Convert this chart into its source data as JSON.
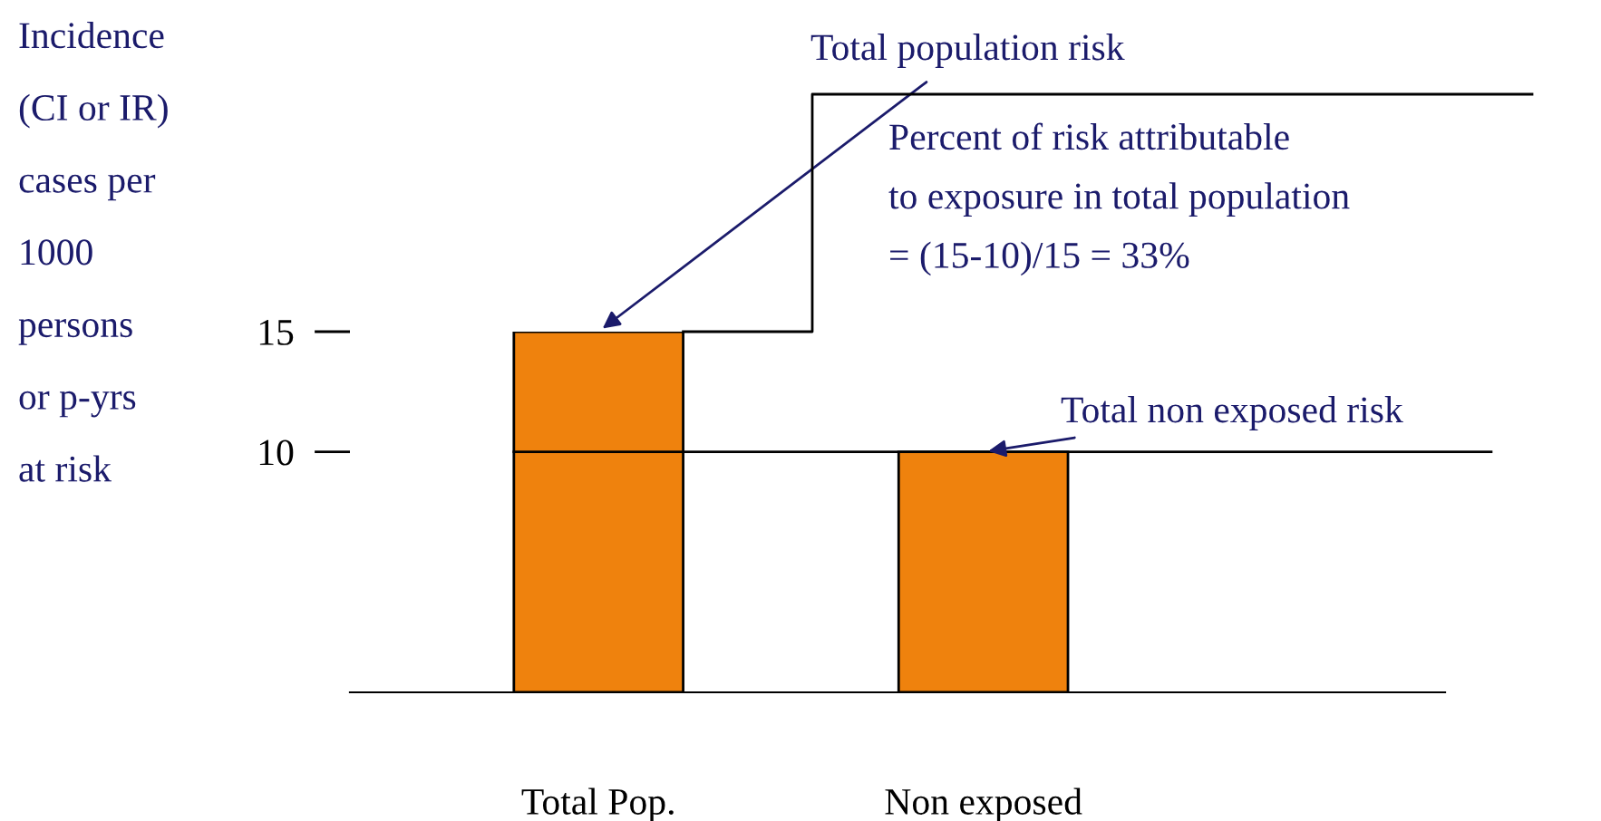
{
  "chart_data": {
    "type": "bar",
    "categories": [
      "Total Pop.",
      "Non exposed"
    ],
    "values": [
      15,
      10
    ],
    "color": "#ef820d",
    "ylabel": "Incidence\n(CI or IR)\ncases per\n1000\npersons\nor p-yrs\nat risk",
    "ylim": [
      0,
      15
    ],
    "yticks": [
      10,
      15
    ],
    "ref_lines": [
      {
        "axis": "y",
        "value": 10,
        "color": "#000000",
        "line_style": "solid"
      }
    ],
    "annotations": [
      {
        "text": "Total population risk",
        "x": "Total Pop.",
        "y": 15
      },
      "Percent of risk attributable\nto exposure in total population\n= (15-10)/15 = 33%",
      {
        "text": "Total non exposed risk",
        "x": "Non exposed",
        "y": 10
      }
    ],
    "grid": false,
    "legend": false
  }
}
